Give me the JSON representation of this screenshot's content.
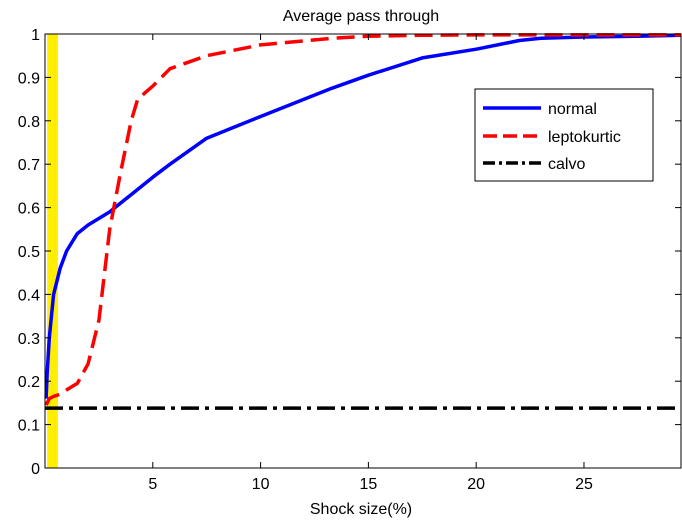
{
  "chart_data": {
    "type": "line",
    "title": "Average pass through",
    "xlabel": "Shock size(%)",
    "ylabel": "",
    "xlim": [
      0,
      29.5
    ],
    "ylim": [
      0,
      1.0
    ],
    "xticks": [
      5,
      10,
      15,
      20,
      25
    ],
    "yticks": [
      0,
      0.1,
      0.2,
      0.3,
      0.4,
      0.5,
      0.6,
      0.7,
      0.8,
      0.9,
      1
    ],
    "xtick_labels": [
      "5",
      "10",
      "15",
      "20",
      "25"
    ],
    "ytick_labels": [
      "0",
      "0.1",
      "0.2",
      "0.3",
      "0.4",
      "0.5",
      "0.6",
      "0.7",
      "0.8",
      "0.9",
      "1"
    ],
    "grid": false,
    "legend_position": "top-right",
    "highlight_band": {
      "x0": 0.1,
      "x1": 0.6,
      "color": "#ffee00"
    },
    "series": [
      {
        "name": "normal",
        "color": "#0000ff",
        "style": "solid",
        "x": [
          0.05,
          0.1,
          0.2,
          0.4,
          0.7,
          1.0,
          1.5,
          2.0,
          3.0,
          4.0,
          5.0,
          5.8,
          7.5,
          10.0,
          13.3,
          15.0,
          17.5,
          20.0,
          22.0,
          23.0,
          25.0,
          27.5,
          29.5
        ],
        "y": [
          0.16,
          0.22,
          0.3,
          0.4,
          0.46,
          0.5,
          0.54,
          0.56,
          0.59,
          0.63,
          0.67,
          0.7,
          0.76,
          0.81,
          0.875,
          0.905,
          0.945,
          0.965,
          0.985,
          0.99,
          0.993,
          0.995,
          0.997
        ]
      },
      {
        "name": "leptokurtic",
        "color": "#ff0000",
        "style": "dashed",
        "x": [
          0.05,
          0.2,
          0.4,
          0.7,
          1.0,
          1.5,
          2.0,
          2.5,
          3.0,
          3.5,
          4.0,
          4.3,
          5.0,
          5.8,
          7.5,
          10.0,
          13.3,
          15.0,
          17.5,
          20.0,
          22.0,
          25.0,
          27.5,
          29.5
        ],
        "y": [
          0.145,
          0.16,
          0.165,
          0.17,
          0.18,
          0.195,
          0.24,
          0.34,
          0.55,
          0.68,
          0.8,
          0.85,
          0.88,
          0.92,
          0.95,
          0.975,
          0.99,
          0.995,
          0.997,
          0.998,
          0.998,
          0.998,
          0.998,
          0.998
        ]
      },
      {
        "name": "calvo",
        "color": "#000000",
        "style": "dashdot",
        "x": [
          0,
          29.5
        ],
        "y": [
          0.138,
          0.138
        ]
      }
    ]
  }
}
